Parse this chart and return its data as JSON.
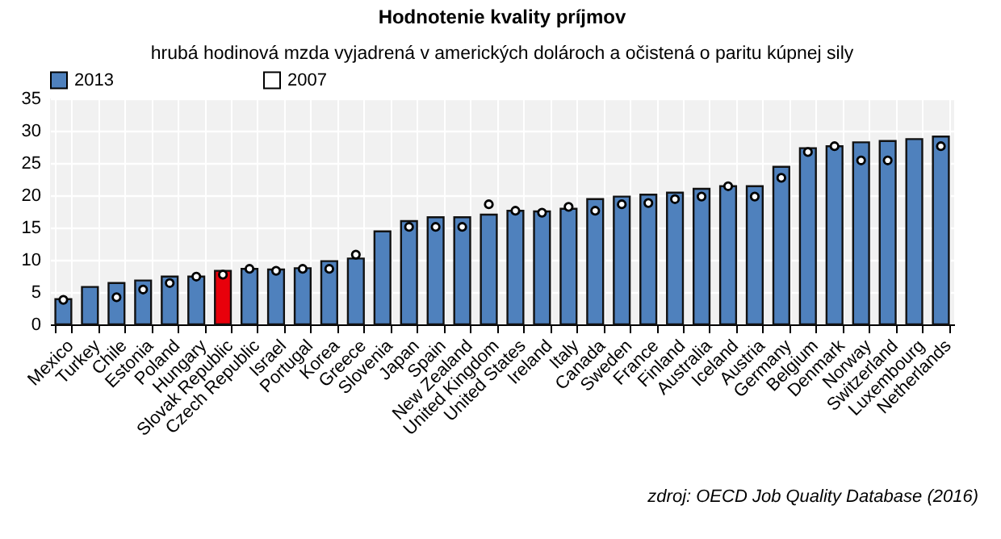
{
  "chart_data": {
    "type": "bar",
    "title": "Hodnotenie kvality príjmov",
    "subtitle": "hrubá hodinová mzda vyjadrená v amerických dolároch a očistená o paritu kúpnej sily",
    "categories": [
      "Mexico",
      "Turkey",
      "Chile",
      "Estonia",
      "Poland",
      "Hungary",
      "Slovak Republic",
      "Czech Republic",
      "Israel",
      "Portugal",
      "Korea",
      "Greece",
      "Slovenia",
      "Japan",
      "Spain",
      "New Zealand",
      "United Kingdom",
      "United States",
      "Ireland",
      "Italy",
      "Canada",
      "Sweden",
      "France",
      "Finland",
      "Australia",
      "Iceland",
      "Austria",
      "Germany",
      "Belgium",
      "Denmark",
      "Norway",
      "Switzerland",
      "Luxembourg",
      "Netherlands"
    ],
    "series": [
      {
        "name": "2013",
        "color": "#4f81bd",
        "colors": [
          "#4f81bd",
          "#4f81bd",
          "#4f81bd",
          "#4f81bd",
          "#4f81bd",
          "#4f81bd",
          "#e8000b",
          "#4f81bd",
          "#4f81bd",
          "#4f81bd",
          "#4f81bd",
          "#4f81bd",
          "#4f81bd",
          "#4f81bd",
          "#4f81bd",
          "#4f81bd",
          "#4f81bd",
          "#4f81bd",
          "#4f81bd",
          "#4f81bd",
          "#4f81bd",
          "#4f81bd",
          "#4f81bd",
          "#4f81bd",
          "#4f81bd",
          "#4f81bd",
          "#4f81bd",
          "#4f81bd",
          "#4f81bd",
          "#4f81bd",
          "#4f81bd",
          "#4f81bd",
          "#4f81bd",
          "#4f81bd"
        ],
        "values": [
          3.9,
          5.8,
          6.4,
          6.8,
          7.4,
          7.4,
          8.3,
          8.6,
          8.5,
          8.7,
          9.8,
          10.2,
          14.4,
          16.0,
          16.6,
          16.6,
          17.0,
          17.6,
          17.5,
          17.9,
          19.4,
          19.8,
          20.1,
          20.4,
          21.0,
          21.4,
          21.4,
          24.4,
          27.3,
          27.6,
          28.2,
          28.4,
          28.7,
          29.1
        ]
      },
      {
        "name": "2007",
        "type": "scatter",
        "color": "#ffffff",
        "marker": "circle",
        "values": [
          3.8,
          null,
          4.2,
          5.4,
          6.4,
          7.4,
          7.7,
          8.6,
          8.3,
          8.6,
          8.6,
          10.8,
          null,
          15.1,
          15.1,
          15.1,
          18.6,
          17.6,
          17.3,
          18.2,
          17.6,
          18.6,
          18.8,
          19.4,
          19.8,
          21.4,
          19.8,
          22.7,
          26.7,
          27.6,
          25.4,
          25.4,
          null,
          27.6
        ]
      }
    ],
    "ylim": [
      0,
      35
    ],
    "yticks": [
      0,
      5,
      10,
      15,
      20,
      25,
      30,
      35
    ],
    "grid": true,
    "legend": "top",
    "annotations": [
      "zdroj: OECD Job Quality Database (2016)"
    ]
  }
}
